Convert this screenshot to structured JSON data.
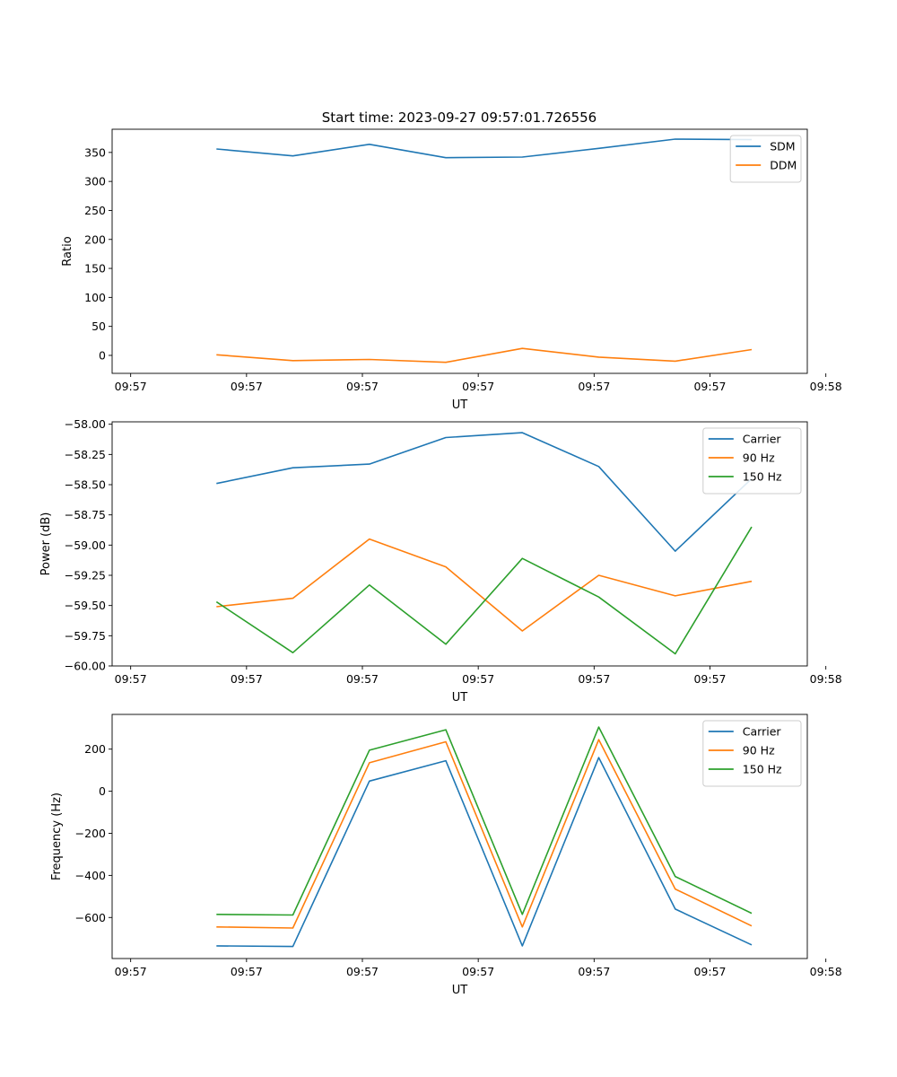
{
  "title": "Start time: 2023-09-27 09:57:01.726556",
  "chart_data": [
    {
      "type": "line",
      "title": "Start time: 2023-09-27 09:57:01.726556",
      "xlabel": "UT",
      "ylabel": "Ratio",
      "x": [
        0.45,
        0.78,
        1.11,
        1.44,
        1.77,
        2.1,
        2.43,
        2.76
      ],
      "xlim": [
        0,
        3
      ],
      "xticks": [
        0.08,
        0.58,
        1.08,
        1.58,
        2.08,
        2.58,
        3.08
      ],
      "xtick_labels": [
        "09:57",
        "09:57",
        "09:57",
        "09:57",
        "09:57",
        "09:57",
        "09:58"
      ],
      "ylim": [
        -31,
        390
      ],
      "yticks": [
        0,
        50,
        100,
        150,
        200,
        250,
        300,
        350
      ],
      "ytick_labels": [
        "0",
        "50",
        "100",
        "150",
        "200",
        "250",
        "300",
        "350"
      ],
      "grid": false,
      "legend_position": "top-right",
      "series": [
        {
          "name": "SDM",
          "color": "#1f77b4",
          "values": [
            356,
            344,
            364,
            341,
            342,
            357,
            373,
            372
          ]
        },
        {
          "name": "DDM",
          "color": "#ff7f0e",
          "values": [
            1,
            -9,
            -7,
            -12,
            12,
            -3,
            -10,
            10
          ]
        }
      ]
    },
    {
      "type": "line",
      "title": "",
      "xlabel": "UT",
      "ylabel": "Power (dB)",
      "x": [
        0.45,
        0.78,
        1.11,
        1.44,
        1.77,
        2.1,
        2.43,
        2.76
      ],
      "xlim": [
        0,
        3
      ],
      "xticks": [
        0.08,
        0.58,
        1.08,
        1.58,
        2.08,
        2.58,
        3.08
      ],
      "xtick_labels": [
        "09:57",
        "09:57",
        "09:57",
        "09:57",
        "09:57",
        "09:57",
        "09:58"
      ],
      "ylim": [
        -60.0,
        -57.98
      ],
      "yticks": [
        -60.0,
        -59.75,
        -59.5,
        -59.25,
        -59.0,
        -58.75,
        -58.5,
        -58.25,
        -58.0
      ],
      "ytick_labels": [
        "−60.00",
        "−59.75",
        "−59.50",
        "−59.25",
        "−59.00",
        "−58.75",
        "−58.50",
        "−58.25",
        "−58.00"
      ],
      "grid": false,
      "legend_position": "top-right",
      "series": [
        {
          "name": "Carrier",
          "color": "#1f77b4",
          "values": [
            -58.49,
            -58.36,
            -58.33,
            -58.11,
            -58.07,
            -58.35,
            -59.05,
            -58.45
          ]
        },
        {
          "name": "90 Hz",
          "color": "#ff7f0e",
          "values": [
            -59.51,
            -59.44,
            -58.95,
            -59.18,
            -59.71,
            -59.25,
            -59.42,
            -59.3
          ]
        },
        {
          "name": "150 Hz",
          "color": "#2ca02c",
          "values": [
            -59.47,
            -59.89,
            -59.33,
            -59.82,
            -59.11,
            -59.43,
            -59.9,
            -58.85
          ]
        }
      ]
    },
    {
      "type": "line",
      "title": "",
      "xlabel": "UT",
      "ylabel": "Frequency (Hz)",
      "x": [
        0.45,
        0.78,
        1.11,
        1.44,
        1.77,
        2.1,
        2.43,
        2.76
      ],
      "xlim": [
        0,
        3
      ],
      "xticks": [
        0.08,
        0.58,
        1.08,
        1.58,
        2.08,
        2.58,
        3.08
      ],
      "xtick_labels": [
        "09:57",
        "09:57",
        "09:57",
        "09:57",
        "09:57",
        "09:57",
        "09:58"
      ],
      "ylim": [
        -795,
        365
      ],
      "yticks": [
        -600,
        -400,
        -200,
        0,
        200
      ],
      "ytick_labels": [
        "−600",
        "−400",
        "−200",
        "0",
        "200"
      ],
      "grid": false,
      "legend_position": "top-right",
      "series": [
        {
          "name": "Carrier",
          "color": "#1f77b4",
          "values": [
            -735,
            -738,
            48,
            145,
            -735,
            160,
            -560,
            -730
          ]
        },
        {
          "name": "90 Hz",
          "color": "#ff7f0e",
          "values": [
            -645,
            -650,
            135,
            235,
            -645,
            245,
            -465,
            -640
          ]
        },
        {
          "name": "150 Hz",
          "color": "#2ca02c",
          "values": [
            -585,
            -588,
            195,
            292,
            -585,
            305,
            -405,
            -580
          ]
        }
      ]
    }
  ]
}
